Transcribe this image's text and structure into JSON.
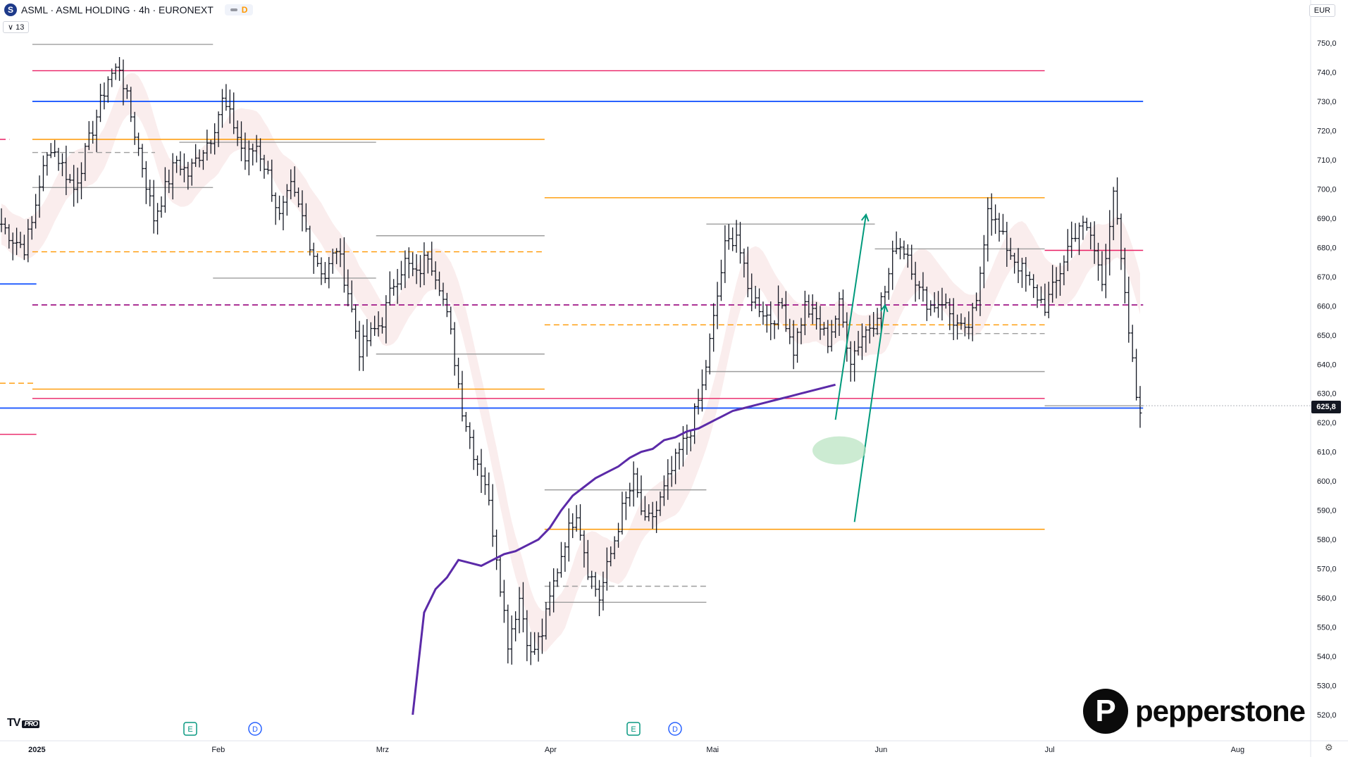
{
  "header": {
    "symbol_icon": "S",
    "title": "ASML · ASML HOLDING · 4h · EURONEXT",
    "market_status_label": "D"
  },
  "indicator_toggle": "13",
  "currency": "EUR",
  "price_label": "625,8",
  "brand": {
    "name": "pepperstone",
    "mark": "P",
    "tv_logo": "TV",
    "tv_pro": "PRO"
  },
  "icons": [
    "symbol-logo-icon",
    "chevron-down-icon",
    "settings-icon",
    "earnings-icon",
    "dividend-icon"
  ],
  "colors": {
    "blue_level": "#2962ff",
    "orange_level": "#ff9800",
    "pink_level": "#e91e63",
    "grey_level": "#9e9e9e",
    "ma_line": "#5b2aa8",
    "arrow": "#009a7c",
    "target_zone": "#b6e2bf"
  },
  "chart_data": {
    "type": "ohlc",
    "title": "",
    "ylim": [
      512,
      758
    ],
    "y_ticks": [
      "750,0",
      "740,0",
      "730,0",
      "720,0",
      "710,0",
      "700,0",
      "690,0",
      "680,0",
      "670,0",
      "660,0",
      "650,0",
      "640,0",
      "630,0",
      "620,0",
      "610,0",
      "600,0",
      "590,0",
      "580,0",
      "570,0",
      "560,0",
      "550,0",
      "540,0",
      "530,0",
      "520,0"
    ],
    "x_ticks": [
      "2025",
      "Feb",
      "Mrz",
      "Apr",
      "Mai",
      "Jun",
      "Jul",
      "Aug"
    ],
    "last_price": 625.8,
    "price_anchors": [
      [
        0,
        688
      ],
      [
        3,
        683
      ],
      [
        6,
        680
      ],
      [
        8,
        688
      ],
      [
        10,
        702
      ],
      [
        13,
        715
      ],
      [
        16,
        708
      ],
      [
        19,
        700
      ],
      [
        22,
        712
      ],
      [
        25,
        725
      ],
      [
        28,
        738
      ],
      [
        31,
        742
      ],
      [
        34,
        725
      ],
      [
        37,
        708
      ],
      [
        40,
        690
      ],
      [
        43,
        700
      ],
      [
        46,
        710
      ],
      [
        49,
        705
      ],
      [
        52,
        712
      ],
      [
        55,
        718
      ],
      [
        58,
        730
      ],
      [
        61,
        722
      ],
      [
        64,
        710
      ],
      [
        67,
        715
      ],
      [
        70,
        705
      ],
      [
        73,
        690
      ],
      [
        76,
        700
      ],
      [
        79,
        690
      ],
      [
        82,
        678
      ],
      [
        85,
        670
      ],
      [
        88,
        680
      ],
      [
        91,
        665
      ],
      [
        94,
        645
      ],
      [
        97,
        650
      ],
      [
        100,
        655
      ],
      [
        103,
        668
      ],
      [
        106,
        675
      ],
      [
        109,
        670
      ],
      [
        112,
        678
      ],
      [
        115,
        668
      ],
      [
        118,
        650
      ],
      [
        121,
        625
      ],
      [
        124,
        610
      ],
      [
        127,
        600
      ],
      [
        130,
        575
      ],
      [
        133,
        545
      ],
      [
        136,
        560
      ],
      [
        139,
        540
      ],
      [
        142,
        548
      ],
      [
        145,
        565
      ],
      [
        148,
        580
      ],
      [
        151,
        590
      ],
      [
        154,
        570
      ],
      [
        157,
        560
      ],
      [
        160,
        575
      ],
      [
        163,
        590
      ],
      [
        166,
        600
      ],
      [
        169,
        585
      ],
      [
        172,
        590
      ],
      [
        175,
        600
      ],
      [
        178,
        610
      ],
      [
        181,
        618
      ],
      [
        184,
        632
      ],
      [
        187,
        655
      ],
      [
        190,
        680
      ],
      [
        193,
        685
      ],
      [
        196,
        665
      ],
      [
        199,
        660
      ],
      [
        202,
        655
      ],
      [
        205,
        660
      ],
      [
        208,
        645
      ],
      [
        211,
        660
      ],
      [
        214,
        655
      ],
      [
        217,
        648
      ],
      [
        220,
        660
      ],
      [
        223,
        642
      ],
      [
        226,
        650
      ],
      [
        229,
        655
      ],
      [
        232,
        665
      ],
      [
        235,
        682
      ],
      [
        238,
        678
      ],
      [
        241,
        665
      ],
      [
        244,
        660
      ],
      [
        247,
        662
      ],
      [
        250,
        655
      ],
      [
        253,
        650
      ],
      [
        256,
        660
      ],
      [
        259,
        695
      ],
      [
        262,
        685
      ],
      [
        265,
        678
      ],
      [
        268,
        672
      ],
      [
        271,
        665
      ],
      [
        274,
        660
      ],
      [
        277,
        668
      ],
      [
        280,
        680
      ],
      [
        283,
        688
      ],
      [
        286,
        684
      ],
      [
        289,
        668
      ],
      [
        292,
        700
      ],
      [
        295,
        662
      ],
      [
        298,
        629
      ],
      [
        299,
        625.8
      ]
    ],
    "event_markers": [
      {
        "type": "E",
        "date": "Jan 29"
      },
      {
        "type": "D",
        "date": "Feb 6"
      },
      {
        "type": "E",
        "date": "Apr 16"
      },
      {
        "type": "D",
        "date": "Apr 25"
      }
    ],
    "levels": [
      {
        "price": 740.5,
        "color": "pink",
        "style": "solid",
        "x0": 0.024,
        "x1": 0.775
      },
      {
        "price": 730.0,
        "color": "blue",
        "style": "solid",
        "x0": 0.024,
        "x1": 0.848
      },
      {
        "price": 717.0,
        "color": "orange",
        "style": "solid",
        "x0": 0.024,
        "x1": 0.404
      },
      {
        "price": 749.5,
        "color": "grey",
        "style": "solid",
        "x0": 0.024,
        "x1": 0.158
      },
      {
        "price": 700.5,
        "color": "grey",
        "style": "solid",
        "x0": 0.024,
        "x1": 0.158
      },
      {
        "price": 712.5,
        "color": "grey",
        "style": "dashed",
        "x0": 0.024,
        "x1": 0.115
      },
      {
        "price": 717.0,
        "color": "pink",
        "style": "dashed",
        "x0": 0.0,
        "x1": 0.007
      },
      {
        "price": 716.0,
        "color": "grey",
        "style": "solid",
        "x0": 0.133,
        "x1": 0.279
      },
      {
        "price": 684.0,
        "color": "grey",
        "style": "solid",
        "x0": 0.279,
        "x1": 0.404
      },
      {
        "price": 669.5,
        "color": "grey",
        "style": "solid",
        "x0": 0.158,
        "x1": 0.279
      },
      {
        "price": 678.5,
        "color": "orange",
        "style": "dashed",
        "x0": 0.024,
        "x1": 0.404
      },
      {
        "price": 660.3,
        "color": "blue",
        "style": "dashed",
        "x0": 0.024,
        "x1": 0.848
      },
      {
        "price": 660.3,
        "color": "pink",
        "style": "dashed",
        "x0": 0.024,
        "x1": 0.848
      },
      {
        "price": 667.5,
        "color": "blue",
        "style": "solid",
        "x0": 0.0,
        "x1": 0.027
      },
      {
        "price": 643.5,
        "color": "grey",
        "style": "solid",
        "x0": 0.279,
        "x1": 0.404
      },
      {
        "price": 631.5,
        "color": "orange",
        "style": "solid",
        "x0": 0.024,
        "x1": 0.404
      },
      {
        "price": 628.3,
        "color": "pink",
        "style": "solid",
        "x0": 0.024,
        "x1": 0.775
      },
      {
        "price": 625.0,
        "color": "blue",
        "style": "solid",
        "x0": 0.0,
        "x1": 0.848
      },
      {
        "price": 633.5,
        "color": "orange",
        "style": "dashed",
        "x0": 0.0,
        "x1": 0.027
      },
      {
        "price": 616.0,
        "color": "pink",
        "style": "solid",
        "x0": 0.0,
        "x1": 0.027
      },
      {
        "price": 697.0,
        "color": "orange",
        "style": "solid",
        "x0": 0.404,
        "x1": 0.775
      },
      {
        "price": 688.0,
        "color": "grey",
        "style": "solid",
        "x0": 0.524,
        "x1": 0.649
      },
      {
        "price": 679.5,
        "color": "grey",
        "style": "solid",
        "x0": 0.649,
        "x1": 0.775
      },
      {
        "price": 679.0,
        "color": "pink",
        "style": "solid",
        "x0": 0.775,
        "x1": 0.848
      },
      {
        "price": 653.5,
        "color": "orange",
        "style": "dashed",
        "x0": 0.404,
        "x1": 0.775
      },
      {
        "price": 650.5,
        "color": "grey",
        "style": "dashed",
        "x0": 0.649,
        "x1": 0.775
      },
      {
        "price": 637.5,
        "color": "grey",
        "style": "solid",
        "x0": 0.524,
        "x1": 0.775
      },
      {
        "price": 625.8,
        "color": "grey",
        "style": "solid",
        "x0": 0.775,
        "x1": 0.848
      },
      {
        "price": 597.0,
        "color": "grey",
        "style": "solid",
        "x0": 0.404,
        "x1": 0.524
      },
      {
        "price": 583.5,
        "color": "orange",
        "style": "solid",
        "x0": 0.404,
        "x1": 0.775
      },
      {
        "price": 564.0,
        "color": "grey",
        "style": "dashed",
        "x0": 0.404,
        "x1": 0.524
      },
      {
        "price": 558.5,
        "color": "grey",
        "style": "solid",
        "x0": 0.404,
        "x1": 0.524
      }
    ],
    "moving_average": [
      [
        108,
        520
      ],
      [
        111,
        555
      ],
      [
        114,
        563
      ],
      [
        117,
        567
      ],
      [
        120,
        573
      ],
      [
        123,
        572
      ],
      [
        126,
        571
      ],
      [
        129,
        573
      ],
      [
        132,
        575
      ],
      [
        135,
        576
      ],
      [
        138,
        578
      ],
      [
        141,
        580
      ],
      [
        144,
        584
      ],
      [
        147,
        590
      ],
      [
        150,
        595
      ],
      [
        153,
        598
      ],
      [
        156,
        601
      ],
      [
        159,
        603
      ],
      [
        162,
        605
      ],
      [
        165,
        608
      ],
      [
        168,
        610
      ],
      [
        171,
        611
      ],
      [
        174,
        614
      ],
      [
        177,
        615
      ],
      [
        180,
        617
      ],
      [
        183,
        618
      ],
      [
        186,
        620
      ],
      [
        189,
        622
      ],
      [
        192,
        624
      ],
      [
        195,
        625
      ],
      [
        198,
        626
      ],
      [
        201,
        627
      ],
      [
        204,
        628
      ],
      [
        207,
        629
      ],
      [
        210,
        630
      ],
      [
        213,
        631
      ],
      [
        216,
        632
      ],
      [
        219,
        633
      ]
    ],
    "projection_arrows": [
      {
        "from": [
          219,
          621
        ],
        "to": [
          227,
          691
        ]
      },
      {
        "from": [
          224,
          586
        ],
        "to": [
          232,
          660
        ]
      }
    ],
    "target_zone": {
      "center": [
        220,
        610.5
      ]
    }
  }
}
